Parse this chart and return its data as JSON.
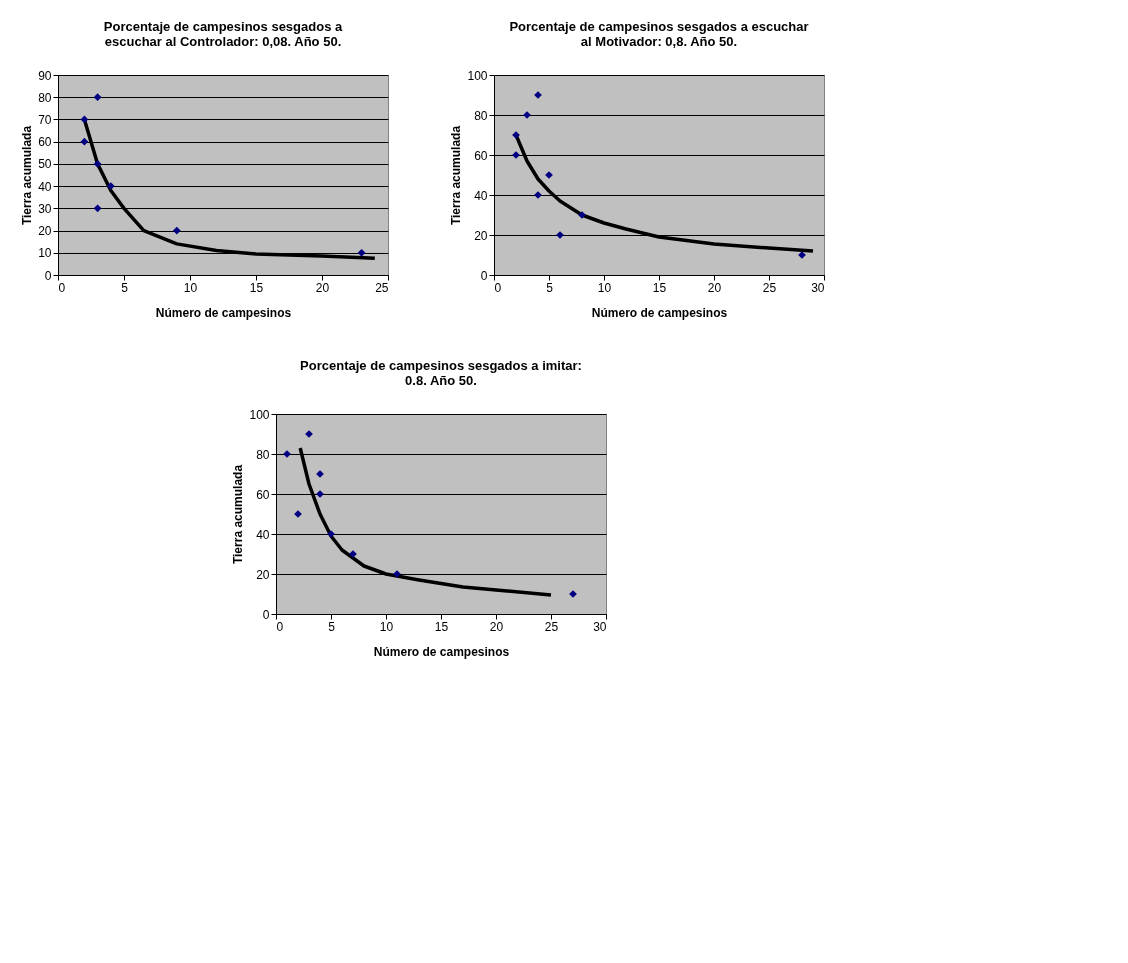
{
  "chart_data": [
    {
      "type": "scatter",
      "title": "Porcentaje de campesinos sesgados a\nescuchar al Controlador: 0,08. Año 50.",
      "xlabel": "Número de campesinos",
      "ylabel": "Tierra acumulada",
      "xlim": [
        0,
        25
      ],
      "xticks": [
        0,
        5,
        10,
        15,
        20,
        25
      ],
      "ylim": [
        0,
        90
      ],
      "yticks": [
        0,
        10,
        20,
        30,
        40,
        50,
        60,
        70,
        80,
        90
      ],
      "grid": "y",
      "marker": "diamond",
      "series": [
        {
          "color": "#000080",
          "x": [
            2,
            2,
            3,
            3,
            3,
            4,
            9,
            23
          ],
          "values": [
            70,
            60,
            80,
            50,
            30,
            40,
            20,
            10
          ]
        },
        {
          "type": "line",
          "color": "#000000",
          "marker": "none",
          "x": [
            2,
            3,
            4,
            5,
            6.5,
            9,
            12,
            15,
            20,
            24
          ],
          "values": [
            70,
            50,
            38,
            30,
            20,
            14,
            11,
            9.5,
            8.5,
            7.5
          ]
        }
      ]
    },
    {
      "type": "scatter",
      "title": "Porcentaje de campesinos sesgados a escuchar\nal Motivador: 0,8. Año 50.",
      "xlabel": "Número de campesinos",
      "ylabel": "Tierra acumulada",
      "xlim": [
        0,
        30
      ],
      "xticks": [
        0,
        5,
        10,
        15,
        20,
        25,
        30
      ],
      "ylim": [
        0,
        100
      ],
      "yticks": [
        0,
        20,
        40,
        60,
        80,
        100
      ],
      "grid": "y",
      "marker": "diamond",
      "series": [
        {
          "color": "#000080",
          "x": [
            2,
            2,
            3,
            4,
            4,
            5,
            6,
            8,
            28
          ],
          "values": [
            70,
            60,
            80,
            90,
            40,
            50,
            20,
            30,
            10
          ]
        },
        {
          "type": "line",
          "color": "#000000",
          "marker": "none",
          "x": [
            2,
            3,
            4,
            5,
            6,
            8,
            10,
            12,
            15,
            20,
            25,
            29
          ],
          "values": [
            70,
            57,
            48,
            42,
            37,
            30,
            26,
            23,
            19,
            15.5,
            13.5,
            12
          ]
        }
      ]
    },
    {
      "type": "scatter",
      "title": "Porcentaje de campesinos sesgados a imitar:\n0.8. Año 50.",
      "xlabel": "Número de campesinos",
      "ylabel": "Tierra acumulada",
      "xlim": [
        0,
        30
      ],
      "xticks": [
        0,
        5,
        10,
        15,
        20,
        25,
        30
      ],
      "ylim": [
        0,
        100
      ],
      "yticks": [
        0,
        20,
        40,
        60,
        80,
        100
      ],
      "grid": "y",
      "marker": "diamond",
      "series": [
        {
          "color": "#000080",
          "x": [
            1,
            2,
            3,
            4,
            4,
            5,
            7,
            11,
            27
          ],
          "values": [
            80,
            50,
            90,
            70,
            60,
            40,
            30,
            20,
            10
          ]
        },
        {
          "type": "line",
          "color": "#000000",
          "marker": "none",
          "x": [
            2.2,
            3,
            4,
            5,
            6,
            7,
            8,
            10,
            13,
            17,
            20,
            25
          ],
          "values": [
            83,
            65,
            50,
            39,
            32,
            28,
            24,
            20,
            17,
            13.5,
            12,
            9.5
          ]
        }
      ]
    }
  ]
}
